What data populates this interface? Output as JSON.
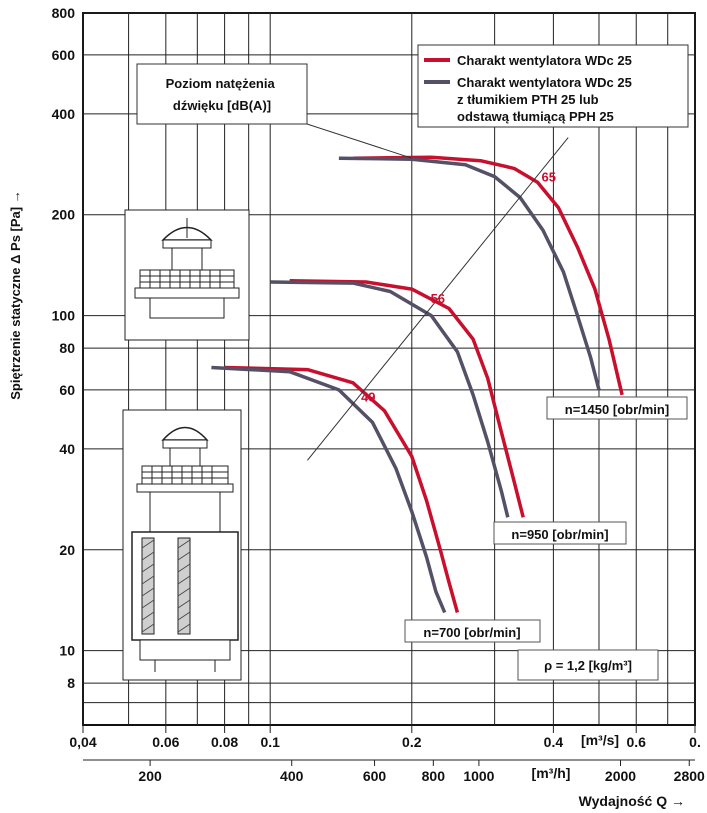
{
  "chart_data": {
    "type": "line",
    "title": "",
    "xlabel": "Wydajność Q →",
    "ylabel": "Spiętrzenie statyczne Δ Ps [Pa] →",
    "x_scale": "log",
    "y_scale": "log",
    "xlim": [
      0.04,
      0.8
    ],
    "ylim": [
      6,
      800
    ],
    "x_ticks_m3s": [
      {
        "value": 0.04,
        "label": "0,04"
      },
      {
        "value": 0.06,
        "label": "0.06"
      },
      {
        "value": 0.08,
        "label": "0.08"
      },
      {
        "value": 0.1,
        "label": "0.1"
      },
      {
        "value": 0.2,
        "label": "0.2"
      },
      {
        "value": 0.4,
        "label": "0.4"
      },
      {
        "value": 0.6,
        "label": "0.6"
      },
      {
        "value": 0.8,
        "label": "0."
      }
    ],
    "x_unit_m3s": "[m³/s]",
    "x_ticks_m3h": [
      {
        "value": 200,
        "label": "200"
      },
      {
        "value": 400,
        "label": "400"
      },
      {
        "value": 600,
        "label": "600"
      },
      {
        "value": 800,
        "label": "800"
      },
      {
        "value": 1000,
        "label": "1000"
      },
      {
        "value": 2000,
        "label": "2000"
      },
      {
        "value": 2800,
        "label": "2800"
      }
    ],
    "x_unit_m3h": "[m³/h]",
    "y_ticks": [
      8,
      10,
      20,
      40,
      60,
      80,
      100,
      200,
      400,
      600,
      800
    ],
    "legend": {
      "position": "top-right",
      "entries": [
        {
          "label": "Charakt wentylatora WDc 25",
          "color": "#c8102e"
        },
        {
          "label": "Charakt wentylatora WDc 25 z tłumikiem PTH 25 lub podstawą tłumiącą PPH 25",
          "color": "#555066"
        }
      ]
    },
    "sound_level_label": "Poziom natężenia dźwięku [dB(A)]",
    "sound_levels": [
      {
        "label": "65",
        "x": 0.37,
        "y": 258
      },
      {
        "label": "56",
        "x": 0.215,
        "y": 112
      },
      {
        "label": "49",
        "x": 0.153,
        "y": 57
      }
    ],
    "speed_labels": [
      {
        "label": "n=1450 [obr/min]"
      },
      {
        "label": "n=950 [obr/min]"
      },
      {
        "label": "n=700 [obr/min]"
      }
    ],
    "density_label": "ρ = 1,2 [kg/m³]",
    "series": [
      {
        "name": "Charakt wentylatora WDc 25",
        "color": "#c8102e",
        "speed": "n=1450 [obr/min]",
        "x": [
          0.15,
          0.22,
          0.28,
          0.33,
          0.37,
          0.41,
          0.45,
          0.49,
          0.525,
          0.56
        ],
        "y": [
          295,
          297,
          290,
          275,
          250,
          210,
          160,
          120,
          85,
          58
        ]
      },
      {
        "name": "Charakt wentylatora WDc 25 z tłumikiem PTH 25 lub podstawą tłumiącą PPH 25",
        "color": "#555066",
        "speed": "n=1450 [obr/min]",
        "x": [
          0.14,
          0.2,
          0.26,
          0.3,
          0.34,
          0.38,
          0.42,
          0.45,
          0.48,
          0.5
        ],
        "y": [
          295,
          293,
          282,
          260,
          225,
          180,
          135,
          100,
          75,
          60
        ]
      },
      {
        "name": "Charakt wentylatora WDc 25",
        "color": "#c8102e",
        "speed": "n=950 [obr/min]",
        "x": [
          0.11,
          0.16,
          0.2,
          0.24,
          0.27,
          0.29,
          0.31,
          0.33,
          0.345
        ],
        "y": [
          127,
          126,
          120,
          105,
          85,
          65,
          45,
          32,
          25
        ]
      },
      {
        "name": "Charakt wentylatora WDc 25 z tłumikiem PTH 25 lub podstawą tłumiącą PPH 25",
        "color": "#555066",
        "speed": "n=950 [obr/min]",
        "x": [
          0.1,
          0.15,
          0.18,
          0.22,
          0.25,
          0.27,
          0.29,
          0.31,
          0.32
        ],
        "y": [
          126,
          125,
          118,
          100,
          78,
          58,
          42,
          30,
          25
        ]
      },
      {
        "name": "Charakt wentylatora WDc 25",
        "color": "#c8102e",
        "speed": "n=700 [obr/min]",
        "x": [
          0.08,
          0.12,
          0.15,
          0.175,
          0.2,
          0.215,
          0.23,
          0.24,
          0.25
        ],
        "y": [
          70,
          69,
          63,
          52,
          38,
          28,
          20,
          16,
          13
        ]
      },
      {
        "name": "Charakt wentylatora WDc 25 z tłumikiem PTH 25 lub podstawą tłumiącą PPH 25",
        "color": "#555066",
        "speed": "n=700 [obr/min]",
        "x": [
          0.075,
          0.11,
          0.14,
          0.165,
          0.185,
          0.2,
          0.215,
          0.225,
          0.235
        ],
        "y": [
          70,
          68,
          60,
          48,
          35,
          26,
          19,
          15,
          13
        ]
      }
    ]
  }
}
